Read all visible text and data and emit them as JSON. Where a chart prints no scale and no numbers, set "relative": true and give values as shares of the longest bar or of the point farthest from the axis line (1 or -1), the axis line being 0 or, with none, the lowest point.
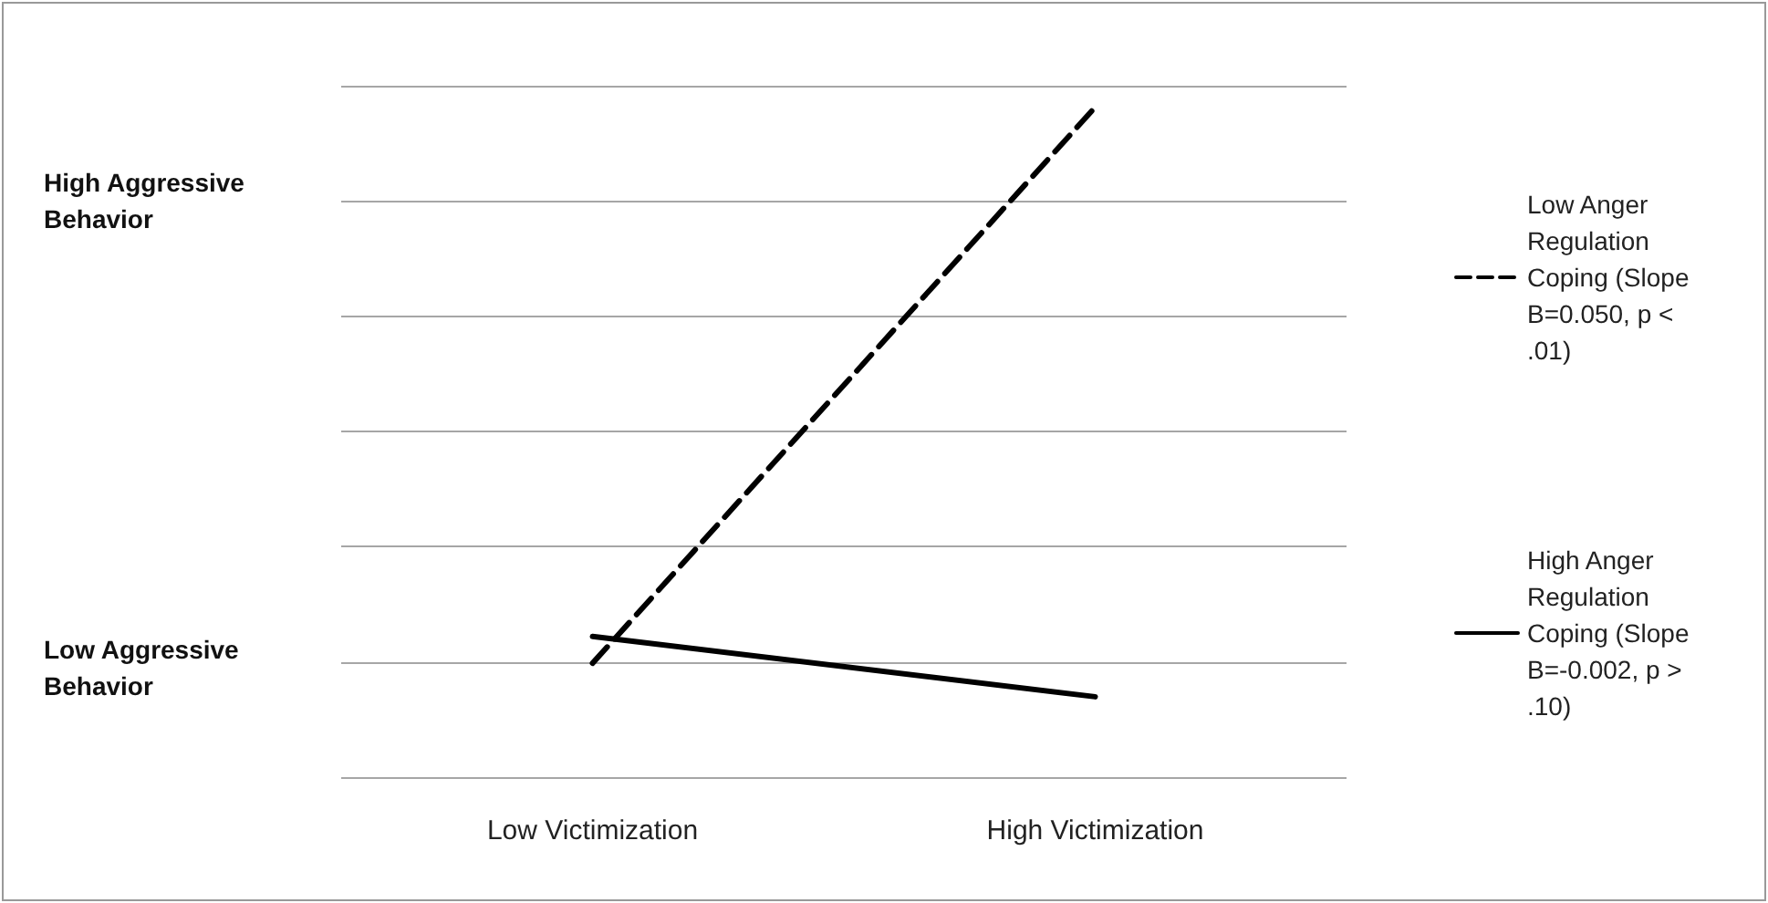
{
  "chart_data": {
    "type": "line",
    "relative": true,
    "categories": [
      "Low Victimization",
      "High Victimization"
    ],
    "series": [
      {
        "name": "Low Anger Regulation Coping (Slope B=0.050, p < .01)",
        "color": "#000000",
        "line_style": "dashed",
        "values": [
          0.17,
          1
        ]
      },
      {
        "name": "High Anger Regulation Coping (Slope B=-0.002, p > .10)",
        "color": "#000000",
        "line_style": "solid",
        "values": [
          0.21,
          0.12
        ]
      }
    ],
    "annotations": [
      "High Aggressive Behavior",
      "Low Aggressive Behavior"
    ],
    "grid": "y",
    "legend": "right",
    "marker": "none"
  }
}
